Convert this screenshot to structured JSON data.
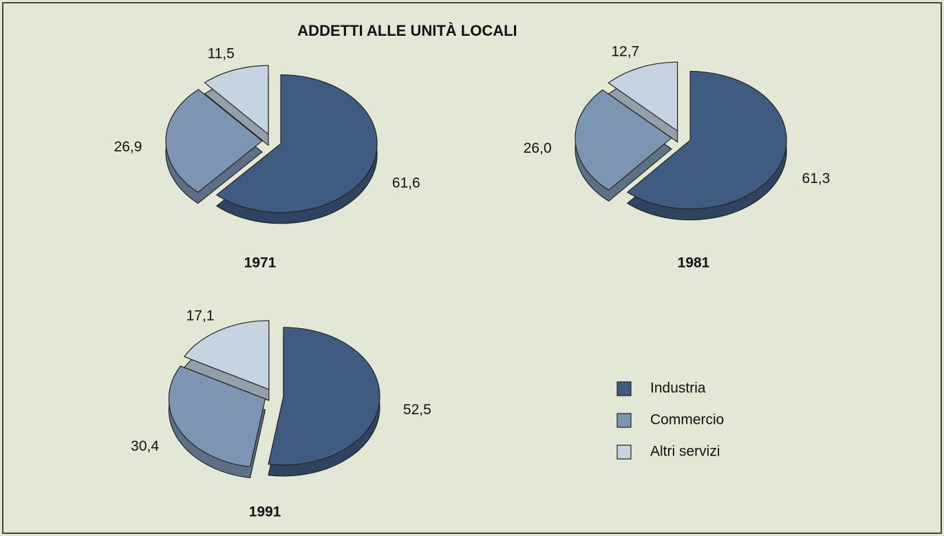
{
  "title": "ADDETTI ALLE UNITÀ LOCALI",
  "chart_data": [
    {
      "type": "pie",
      "title": "1971",
      "categories": [
        "Industria",
        "Commercio",
        "Altri servizi"
      ],
      "values": [
        61.6,
        26.9,
        11.5
      ],
      "value_labels": [
        "61,6",
        "26,9",
        "11,5"
      ],
      "colors": [
        "#3f5b80",
        "#7d95b2",
        "#c6d4e2"
      ]
    },
    {
      "type": "pie",
      "title": "1981",
      "categories": [
        "Industria",
        "Commercio",
        "Altri servizi"
      ],
      "values": [
        61.3,
        26.0,
        12.7
      ],
      "value_labels": [
        "61,3",
        "26,0",
        "12,7"
      ],
      "colors": [
        "#3f5b80",
        "#7d95b2",
        "#c6d4e2"
      ]
    },
    {
      "type": "pie",
      "title": "1991",
      "categories": [
        "Industria",
        "Commercio",
        "Altri servizi"
      ],
      "values": [
        52.5,
        30.4,
        17.1
      ],
      "value_labels": [
        "52,5",
        "30,4",
        "17,1"
      ],
      "colors": [
        "#3f5b80",
        "#7d95b2",
        "#c6d4e2"
      ]
    }
  ]
}
